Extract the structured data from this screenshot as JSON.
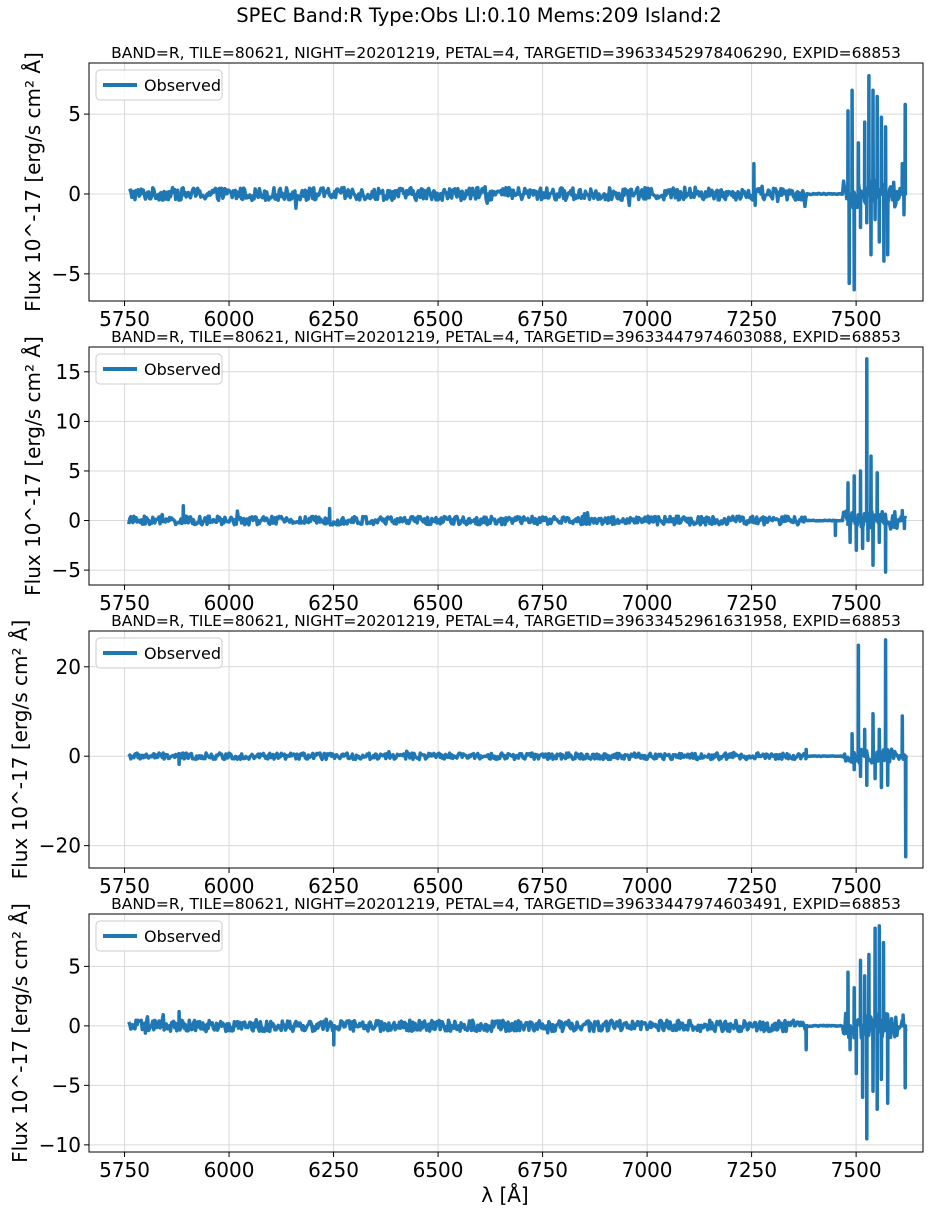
{
  "figure": {
    "title": "SPEC Band:R Type:Obs Ll:0.10 Mems:209 Island:2",
    "xlabel": "λ [Å]"
  },
  "colors": {
    "series": "#1f77b4",
    "grid": "#d9d9d9",
    "axes": "#000000"
  },
  "chart_data": [
    {
      "type": "line",
      "title": "BAND=R, TILE=80621, NIGHT=20201219, PETAL=4, TARGETID=39633452978406290, EXPID=68853",
      "ylabel": "Flux 10^-17 [erg/s cm² Å]",
      "xlim": [
        5665,
        7660
      ],
      "ylim": [
        -6.7,
        8.2
      ],
      "xticks": [
        5750,
        6000,
        6250,
        6500,
        6750,
        7000,
        7250,
        7500
      ],
      "yticks": [
        -5,
        0,
        5
      ],
      "grid": true,
      "legend": {
        "position": "top-left",
        "entries": [
          "Observed"
        ]
      },
      "series": [
        {
          "name": "Observed",
          "x_range": [
            5760,
            7620
          ],
          "baseline_amplitude": 0.5,
          "spikes": [
            [
              7255,
              1.9
            ],
            [
              7258,
              -0.7
            ],
            [
              7480,
              5.2
            ],
            [
              7483,
              -5.6
            ],
            [
              7490,
              6.5
            ],
            [
              7495,
              -6.0
            ],
            [
              7505,
              3.2
            ],
            [
              7510,
              -2.1
            ],
            [
              7520,
              4.5
            ],
            [
              7525,
              -1.8
            ],
            [
              7530,
              7.4
            ],
            [
              7535,
              -3.8
            ],
            [
              7540,
              6.5
            ],
            [
              7545,
              -1.6
            ],
            [
              7550,
              6.1
            ],
            [
              7555,
              -3.0
            ],
            [
              7560,
              4.8
            ],
            [
              7566,
              -4.2
            ],
            [
              7570,
              4.2
            ],
            [
              7575,
              -3.8
            ],
            [
              7610,
              1.9
            ],
            [
              7614,
              -1.3
            ],
            [
              7617,
              5.6
            ]
          ]
        }
      ]
    },
    {
      "type": "line",
      "title": "BAND=R, TILE=80621, NIGHT=20201219, PETAL=4, TARGETID=39633447974603088, EXPID=68853",
      "ylabel": "Flux 10^-17 [erg/s cm² Å]",
      "xlim": [
        5665,
        7660
      ],
      "ylim": [
        -6.5,
        17.5
      ],
      "xticks": [
        5750,
        6000,
        6250,
        6500,
        6750,
        7000,
        7250,
        7500
      ],
      "yticks": [
        -5,
        0,
        5,
        10,
        15
      ],
      "grid": true,
      "legend": {
        "position": "top-left",
        "entries": [
          "Observed"
        ]
      },
      "series": [
        {
          "name": "Observed",
          "x_range": [
            5760,
            7620
          ],
          "baseline_amplitude": 0.55,
          "spikes": [
            [
              5890,
              1.5
            ],
            [
              6240,
              1.2
            ],
            [
              7450,
              -1.5
            ],
            [
              7480,
              3.8
            ],
            [
              7485,
              -2.2
            ],
            [
              7495,
              4.5
            ],
            [
              7500,
              -3.0
            ],
            [
              7510,
              5.0
            ],
            [
              7515,
              -2.8
            ],
            [
              7525,
              16.3
            ],
            [
              7528,
              -2.0
            ],
            [
              7535,
              6.5
            ],
            [
              7540,
              -4.5
            ],
            [
              7550,
              4.8
            ],
            [
              7555,
              -2.2
            ],
            [
              7570,
              -5.2
            ],
            [
              7610,
              1.0
            ],
            [
              7615,
              -0.8
            ]
          ]
        }
      ]
    },
    {
      "type": "line",
      "title": "BAND=R, TILE=80621, NIGHT=20201219, PETAL=4, TARGETID=39633452961631958, EXPID=68853",
      "ylabel": "Flux 10^-17 [erg/s cm² Å]",
      "xlim": [
        5665,
        7660
      ],
      "ylim": [
        -25,
        28
      ],
      "xticks": [
        5750,
        6000,
        6250,
        6500,
        6750,
        7000,
        7250,
        7500
      ],
      "yticks": [
        -20,
        0,
        20
      ],
      "grid": true,
      "legend": {
        "position": "top-left",
        "entries": [
          "Observed"
        ]
      },
      "series": [
        {
          "name": "Observed",
          "x_range": [
            5760,
            7620
          ],
          "baseline_amplitude": 0.9,
          "spikes": [
            [
              5880,
              -1.8
            ],
            [
              7380,
              1.5
            ],
            [
              7490,
              5.0
            ],
            [
              7495,
              -3.0
            ],
            [
              7505,
              24.8
            ],
            [
              7510,
              -4.5
            ],
            [
              7520,
              6.0
            ],
            [
              7525,
              -6.5
            ],
            [
              7540,
              9.5
            ],
            [
              7545,
              -5.0
            ],
            [
              7555,
              6.0
            ],
            [
              7560,
              -7.0
            ],
            [
              7570,
              26.0
            ],
            [
              7575,
              -6.5
            ],
            [
              7610,
              9.0
            ],
            [
              7618,
              -22.5
            ]
          ]
        }
      ]
    },
    {
      "type": "line",
      "title": "BAND=R, TILE=80621, NIGHT=20201219, PETAL=4, TARGETID=39633447974603491, EXPID=68853",
      "ylabel": "Flux 10^-17 [erg/s cm² Å]",
      "xlim": [
        5665,
        7660
      ],
      "ylim": [
        -10.6,
        9.4
      ],
      "xticks": [
        5750,
        6000,
        6250,
        6500,
        6750,
        7000,
        7250,
        7500
      ],
      "yticks": [
        -10,
        -5,
        0,
        5
      ],
      "grid": true,
      "legend": {
        "position": "top-left",
        "entries": [
          "Observed"
        ]
      },
      "series": [
        {
          "name": "Observed",
          "x_range": [
            5760,
            7620
          ],
          "baseline_amplitude": 0.6,
          "spikes": [
            [
              5880,
              1.2
            ],
            [
              6250,
              -1.6
            ],
            [
              7380,
              -2.0
            ],
            [
              7480,
              4.5
            ],
            [
              7485,
              -2.0
            ],
            [
              7495,
              3.2
            ],
            [
              7500,
              -4.0
            ],
            [
              7510,
              5.5
            ],
            [
              7515,
              -6.0
            ],
            [
              7520,
              4.2
            ],
            [
              7525,
              -9.5
            ],
            [
              7530,
              6.0
            ],
            [
              7540,
              -5.5
            ],
            [
              7545,
              8.2
            ],
            [
              7550,
              -7.0
            ],
            [
              7555,
              8.4
            ],
            [
              7560,
              -4.5
            ],
            [
              7565,
              7.0
            ],
            [
              7575,
              -6.5
            ],
            [
              7612,
              0.9
            ],
            [
              7617,
              -5.2
            ]
          ]
        }
      ]
    }
  ]
}
